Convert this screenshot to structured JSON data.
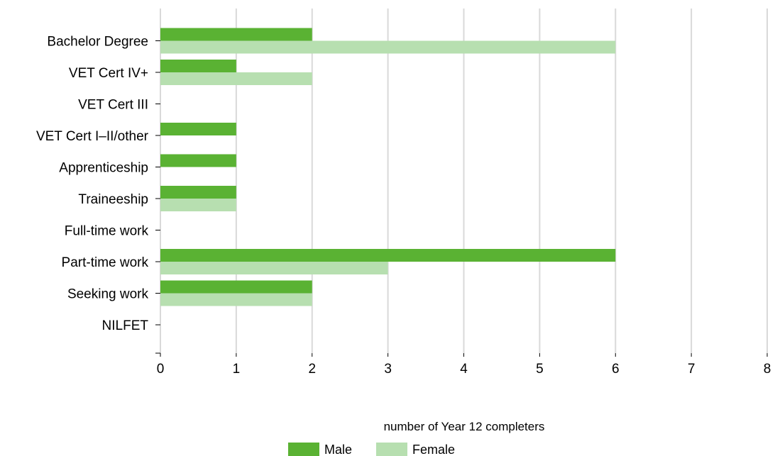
{
  "chart_data": {
    "type": "bar",
    "orientation": "horizontal",
    "categories": [
      "Bachelor Degree",
      "VET Cert IV+",
      "VET Cert III",
      "VET Cert I–II/other",
      "Apprenticeship",
      "Traineeship",
      "Full-time work",
      "Part-time work",
      "Seeking work",
      "NILFET"
    ],
    "series": [
      {
        "name": "Male",
        "values": [
          2,
          1,
          0,
          1,
          1,
          1,
          0,
          6,
          2,
          0
        ],
        "color": "#5ab233"
      },
      {
        "name": "Female",
        "values": [
          6,
          2,
          0,
          0,
          0,
          1,
          0,
          3,
          2,
          0
        ],
        "color": "#b7dfb0"
      }
    ],
    "xlabel": "number of Year 12 completers",
    "ylabel": "",
    "xlim": [
      0,
      8
    ],
    "x_ticks": [
      "0",
      "1",
      "2",
      "3",
      "4",
      "5",
      "6",
      "7",
      "8"
    ],
    "grid": true,
    "gridline_color": "#d9d9d9",
    "legend_position": "bottom-center"
  }
}
